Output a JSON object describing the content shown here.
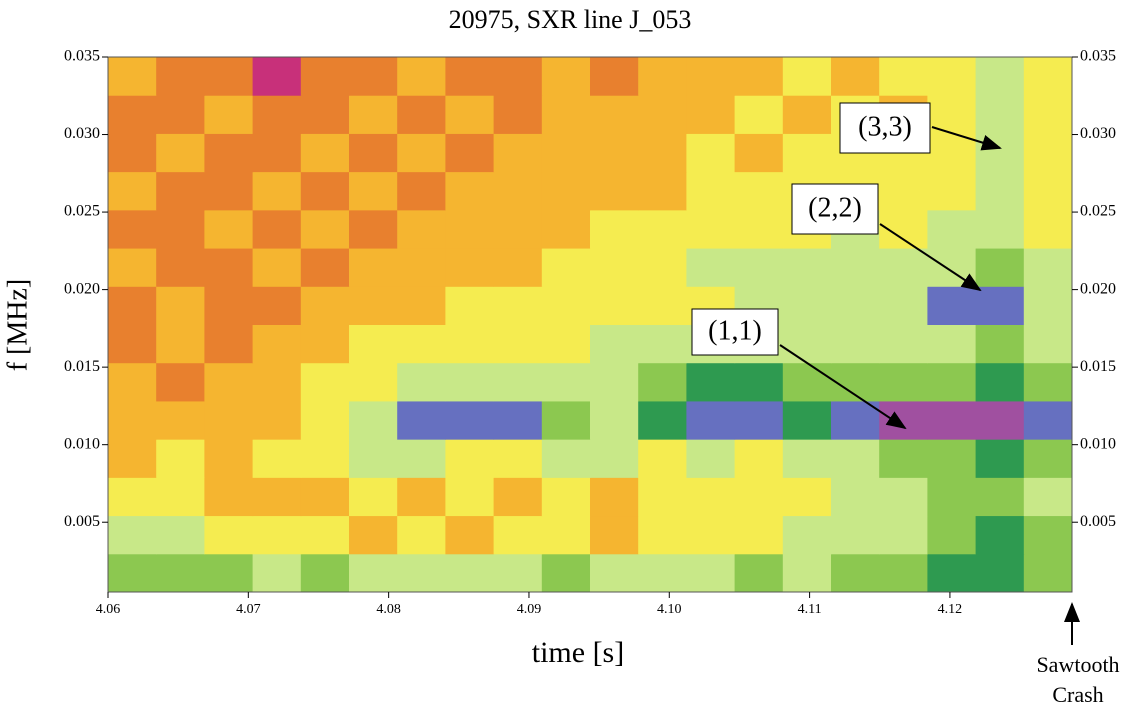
{
  "chart_data": {
    "type": "heatmap",
    "title": "20975, SXR line J_053",
    "x_label": "time [s]",
    "y_label": "f [MHz]",
    "xlim": [
      4.06,
      4.1287
    ],
    "ylim": [
      0.0005,
      0.035
    ],
    "xticks": [
      4.06,
      4.07,
      4.08,
      4.09,
      {
        "value": 4.1,
        "label": "4.10"
      },
      4.11,
      4.12
    ],
    "yticks": [
      0.005,
      {
        "value": 0.01,
        "label": "0.010"
      },
      0.015,
      {
        "value": 0.02,
        "label": "0.020"
      },
      0.025,
      {
        "value": 0.03,
        "label": "0.030"
      },
      0.035
    ],
    "colors": [
      "#c8307a",
      "#e8802e",
      "#f5b530",
      "#f5ec50",
      "#c8e888",
      "#8cc850",
      "#2e9a50",
      "#6670c0",
      "#a050a0"
    ],
    "z": [
      [
        5,
        5,
        5,
        4,
        5,
        4,
        4,
        4,
        4,
        5,
        4,
        4,
        4,
        5,
        4,
        5,
        5,
        6,
        6,
        5
      ],
      [
        4,
        4,
        3,
        3,
        3,
        2,
        3,
        2,
        3,
        3,
        2,
        3,
        3,
        3,
        4,
        4,
        4,
        5,
        6,
        5
      ],
      [
        3,
        3,
        2,
        2,
        2,
        3,
        2,
        3,
        2,
        3,
        2,
        3,
        3,
        3,
        3,
        4,
        4,
        5,
        5,
        4
      ],
      [
        2,
        3,
        2,
        3,
        3,
        4,
        4,
        3,
        3,
        4,
        4,
        3,
        4,
        3,
        4,
        4,
        5,
        5,
        6,
        5
      ],
      [
        2,
        2,
        2,
        2,
        3,
        4,
        7,
        7,
        7,
        5,
        4,
        6,
        7,
        7,
        6,
        7,
        8,
        8,
        8,
        7
      ],
      [
        2,
        1,
        2,
        2,
        3,
        3,
        4,
        4,
        4,
        4,
        4,
        5,
        6,
        6,
        5,
        5,
        5,
        5,
        6,
        5
      ],
      [
        1,
        2,
        1,
        2,
        2,
        3,
        3,
        3,
        3,
        3,
        4,
        4,
        4,
        4,
        4,
        4,
        4,
        4,
        5,
        4
      ],
      [
        1,
        2,
        1,
        1,
        2,
        2,
        2,
        3,
        3,
        3,
        3,
        3,
        3,
        4,
        4,
        4,
        4,
        7,
        7,
        4
      ],
      [
        2,
        1,
        1,
        2,
        1,
        2,
        2,
        2,
        2,
        3,
        3,
        3,
        4,
        4,
        4,
        4,
        4,
        4,
        5,
        4
      ],
      [
        1,
        1,
        2,
        1,
        2,
        1,
        2,
        2,
        2,
        2,
        3,
        3,
        3,
        3,
        3,
        4,
        3,
        4,
        4,
        3
      ],
      [
        2,
        1,
        1,
        2,
        1,
        2,
        1,
        2,
        2,
        2,
        2,
        2,
        3,
        3,
        3,
        3,
        3,
        3,
        4,
        3
      ],
      [
        1,
        2,
        1,
        1,
        2,
        1,
        2,
        1,
        2,
        2,
        2,
        2,
        3,
        2,
        3,
        3,
        3,
        3,
        4,
        3
      ],
      [
        1,
        1,
        2,
        1,
        1,
        2,
        1,
        2,
        1,
        2,
        2,
        2,
        2,
        3,
        2,
        3,
        2,
        3,
        4,
        3
      ],
      [
        2,
        1,
        1,
        0,
        1,
        1,
        2,
        1,
        1,
        2,
        1,
        2,
        2,
        2,
        3,
        2,
        3,
        3,
        4,
        3
      ]
    ],
    "annotations": [
      "(3,3)",
      "(2,2)",
      "(1,1)"
    ],
    "crash_label": [
      "Sawtooth",
      "Crash"
    ]
  }
}
